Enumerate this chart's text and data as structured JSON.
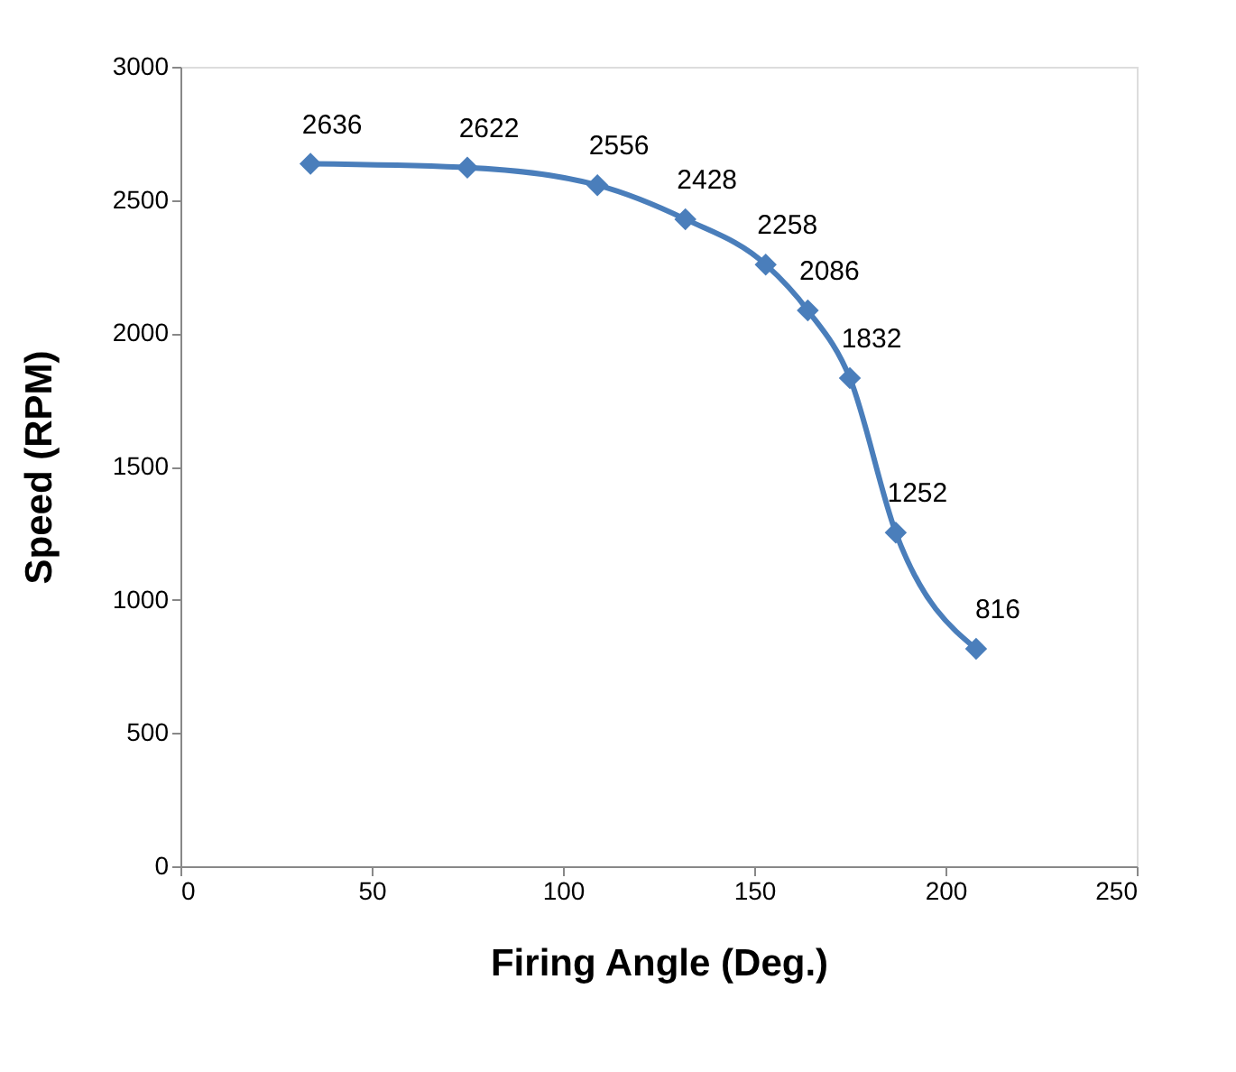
{
  "chart_data": {
    "type": "line",
    "xlabel": "Firing Angle (Deg.)",
    "ylabel": "Speed (RPM)",
    "x": [
      34,
      75,
      109,
      132,
      153,
      164,
      175,
      187,
      208
    ],
    "series": [
      {
        "color": "#4a7ebb",
        "values": [
          2636,
          2622,
          2556,
          2428,
          2258,
          2086,
          1832,
          1252,
          816
        ]
      }
    ],
    "xlim": [
      0,
      250
    ],
    "xticks": [
      0,
      50,
      100,
      150,
      200,
      250
    ],
    "ylim": [
      0,
      3000
    ],
    "yticks": [
      0,
      500,
      1000,
      1500,
      2000,
      2500,
      3000
    ],
    "marker": "diamond",
    "line_style": "solid",
    "data_labels": true,
    "grid": false
  }
}
